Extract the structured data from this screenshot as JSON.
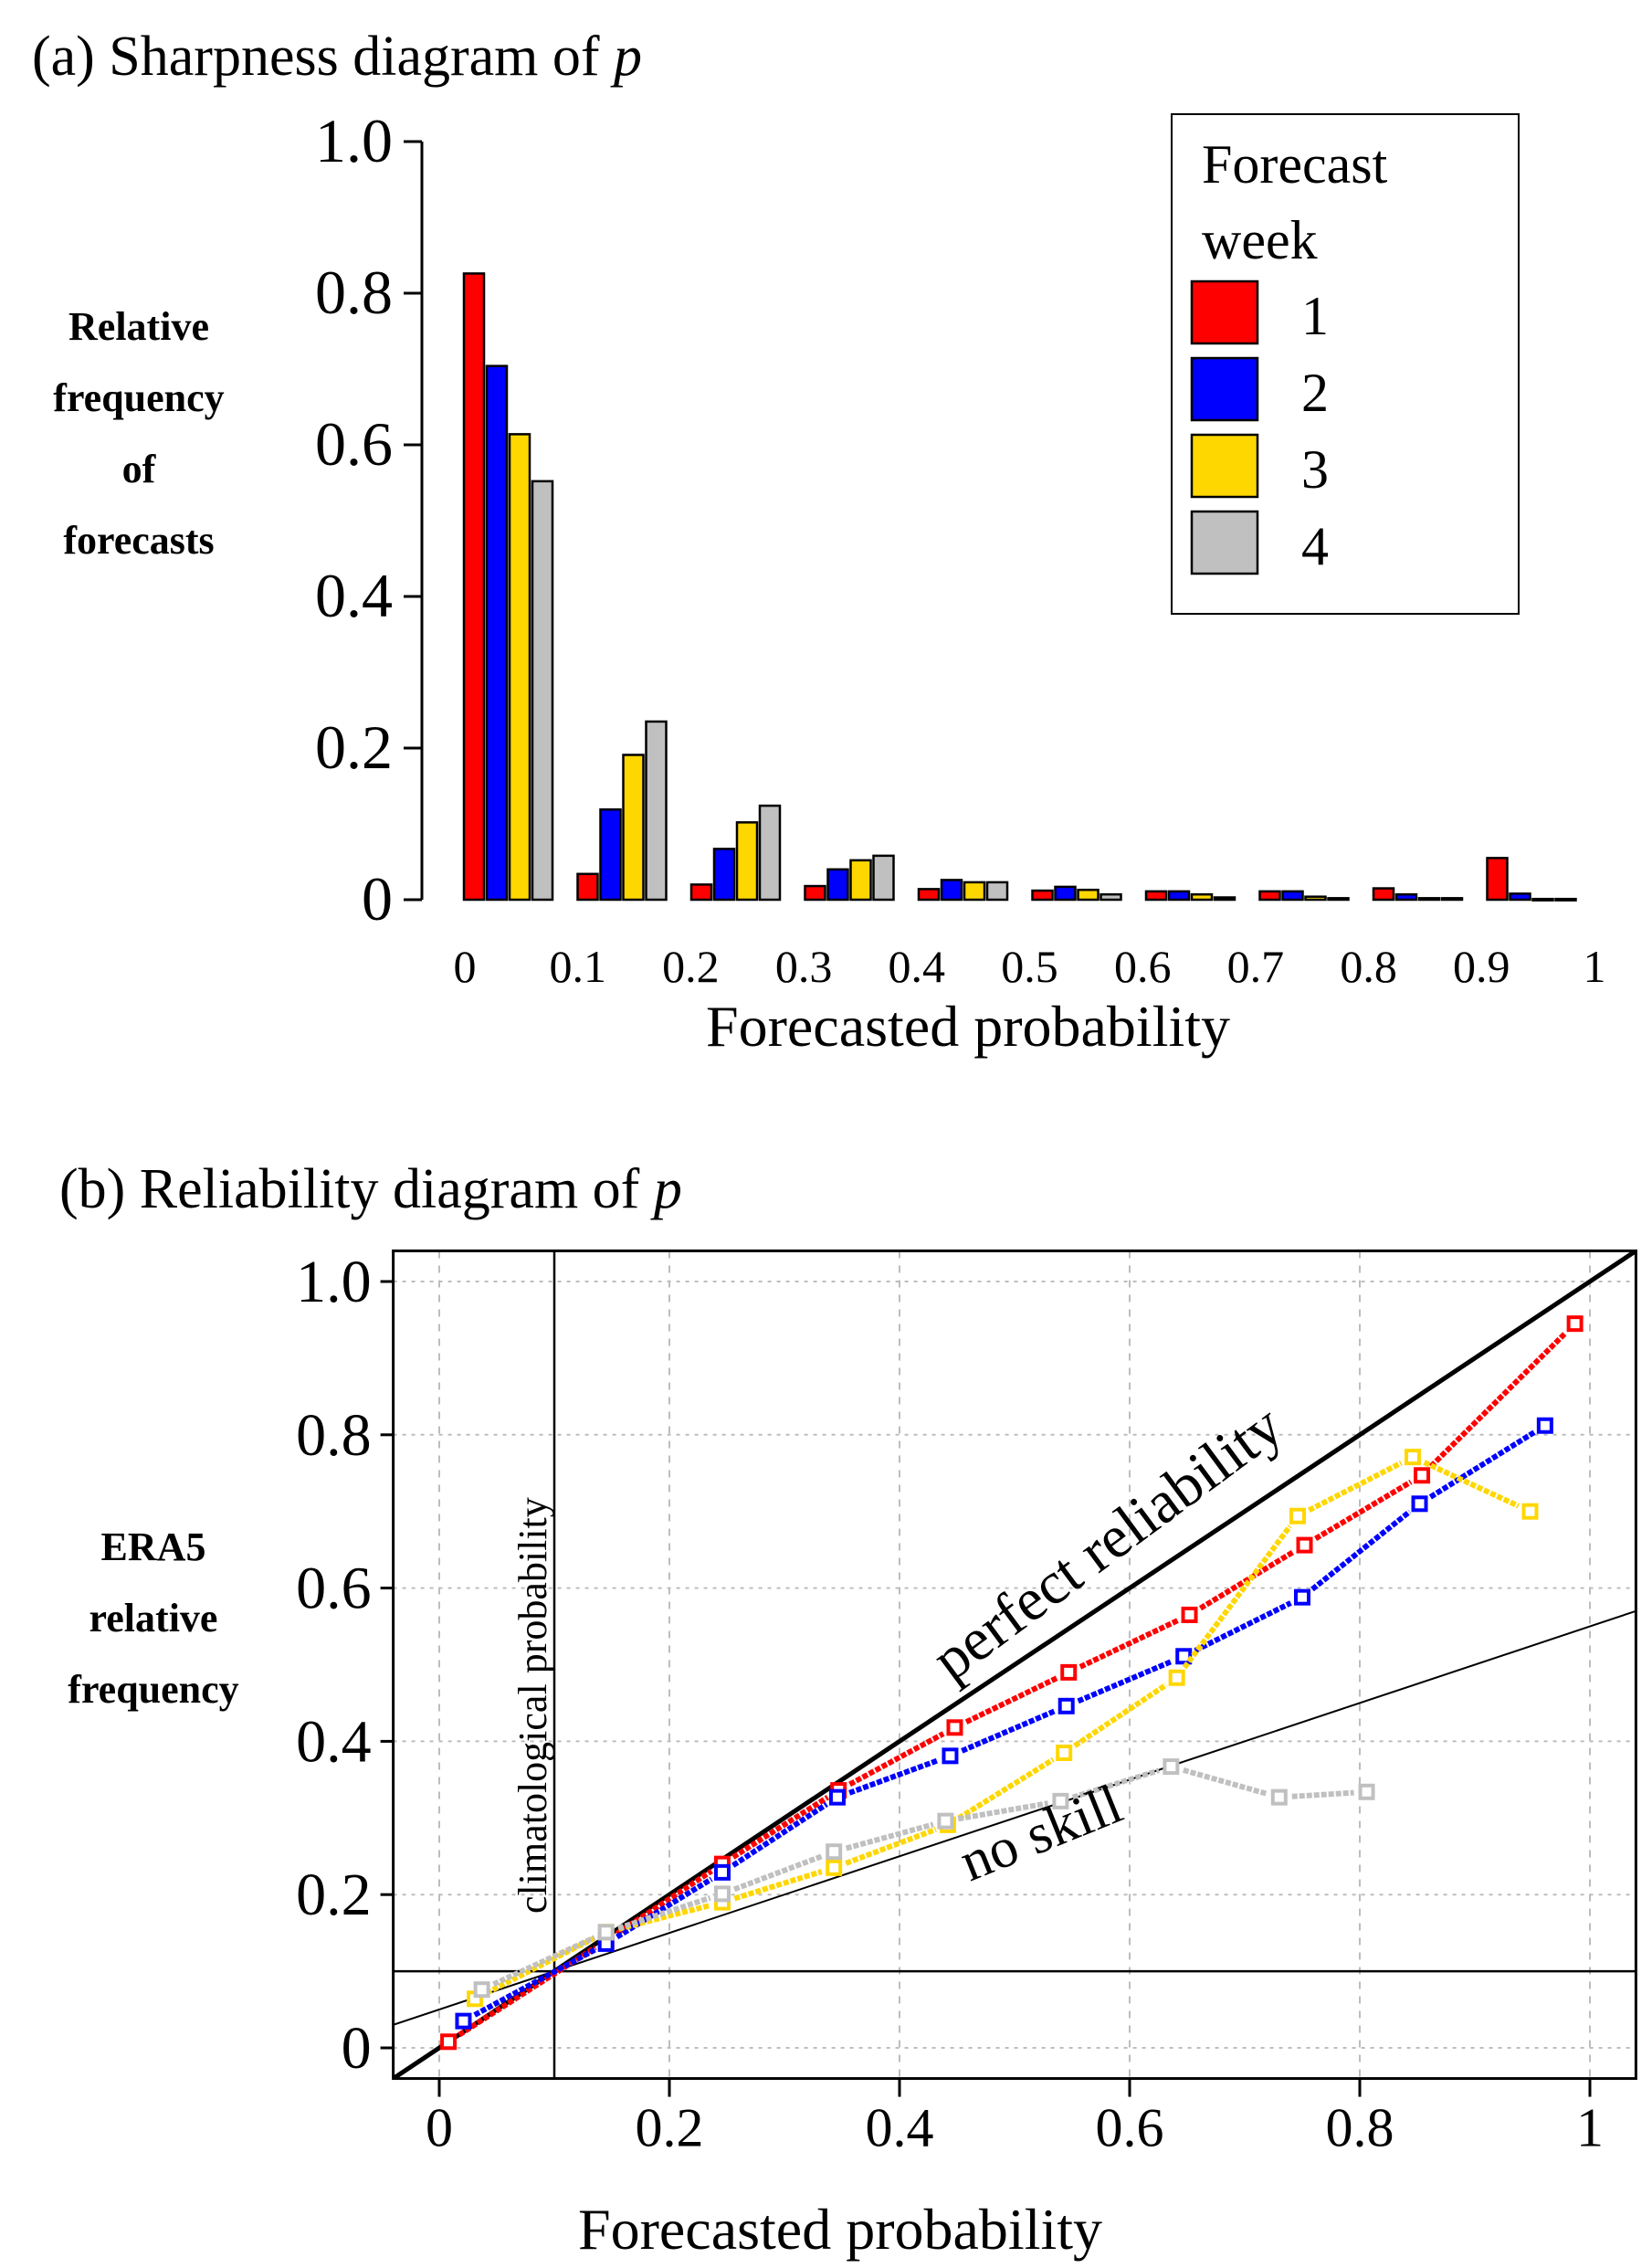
{
  "chart_data": [
    {
      "type": "bar",
      "panel": "a",
      "title_prefix": "(a) Sharpness diagram of ",
      "title_var": "p",
      "xlabel": "Forecasted probability",
      "ylabel_lines": [
        "Relative",
        "frequency",
        "of",
        "forecasts"
      ],
      "ylim": [
        0,
        1.0
      ],
      "yticks": [
        "0",
        "0.2",
        "0.4",
        "0.6",
        "0.8",
        "1.0"
      ],
      "xtick_labels": [
        "0",
        "0.1",
        "0.2",
        "0.3",
        "0.4",
        "0.5",
        "0.6",
        "0.7",
        "0.8",
        "0.9",
        "1"
      ],
      "categories": [
        "0-0.1",
        "0.1-0.2",
        "0.2-0.3",
        "0.3-0.4",
        "0.4-0.5",
        "0.5-0.6",
        "0.6-0.7",
        "0.7-0.8",
        "0.8-0.9",
        "0.9-1"
      ],
      "legend": {
        "title_lines": [
          "Forecast",
          "week"
        ],
        "position": "top-right"
      },
      "series": [
        {
          "name": "1",
          "color": "#ff0000",
          "values": [
            0.826,
            0.034,
            0.02,
            0.018,
            0.014,
            0.012,
            0.011,
            0.011,
            0.015,
            0.055
          ]
        },
        {
          "name": "2",
          "color": "#0000ff",
          "values": [
            0.704,
            0.119,
            0.067,
            0.04,
            0.026,
            0.017,
            0.011,
            0.011,
            0.007,
            0.008
          ]
        },
        {
          "name": "3",
          "color": "#ffd700",
          "values": [
            0.614,
            0.191,
            0.102,
            0.052,
            0.023,
            0.013,
            0.007,
            0.004,
            0.002,
            0.001
          ]
        },
        {
          "name": "4",
          "color": "#c0c0c0",
          "values": [
            0.552,
            0.235,
            0.124,
            0.058,
            0.023,
            0.007,
            0.003,
            0.002,
            0.002,
            0.001
          ]
        }
      ]
    },
    {
      "type": "line",
      "panel": "b",
      "title_prefix": "(b) Reliability diagram of ",
      "title_var": "p",
      "xlabel": "Forecasted probability",
      "ylabel_lines": [
        "ERA5",
        "relative",
        "frequency"
      ],
      "xlim": [
        -0.04,
        1.04
      ],
      "ylim": [
        -0.04,
        1.04
      ],
      "xticks": [
        "0",
        "0.2",
        "0.4",
        "0.6",
        "0.8",
        "1"
      ],
      "yticks": [
        "0",
        "0.2",
        "0.4",
        "0.6",
        "0.8",
        "1.0"
      ],
      "grid": true,
      "climatological_probability": 0.1,
      "annotations": {
        "perfect": "perfect reliability",
        "noskill": "no skill",
        "climatology": "climatological probability"
      },
      "series": [
        {
          "name": "1",
          "color": "#ff0000",
          "x": [
            0.008,
            0.145,
            0.246,
            0.347,
            0.448,
            0.547,
            0.652,
            0.752,
            0.854,
            0.987
          ],
          "y": [
            0.008,
            0.14,
            0.24,
            0.336,
            0.418,
            0.49,
            0.565,
            0.656,
            0.747,
            0.945
          ]
        },
        {
          "name": "2",
          "color": "#0000ff",
          "x": [
            0.021,
            0.145,
            0.246,
            0.346,
            0.444,
            0.545,
            0.647,
            0.75,
            0.852,
            0.961
          ],
          "y": [
            0.035,
            0.136,
            0.229,
            0.327,
            0.381,
            0.446,
            0.511,
            0.588,
            0.71,
            0.812
          ]
        },
        {
          "name": "3",
          "color": "#ffd700",
          "x": [
            0.031,
            0.145,
            0.246,
            0.343,
            0.442,
            0.543,
            0.641,
            0.746,
            0.846,
            0.948
          ],
          "y": [
            0.064,
            0.151,
            0.19,
            0.235,
            0.291,
            0.385,
            0.483,
            0.694,
            0.771,
            0.7
          ]
        },
        {
          "name": "4",
          "color": "#c0c0c0",
          "x": [
            0.037,
            0.145,
            0.246,
            0.343,
            0.44,
            0.54,
            0.636,
            0.73,
            0.806
          ],
          "y": [
            0.076,
            0.151,
            0.201,
            0.256,
            0.296,
            0.322,
            0.367,
            0.327,
            0.334
          ]
        }
      ]
    }
  ]
}
